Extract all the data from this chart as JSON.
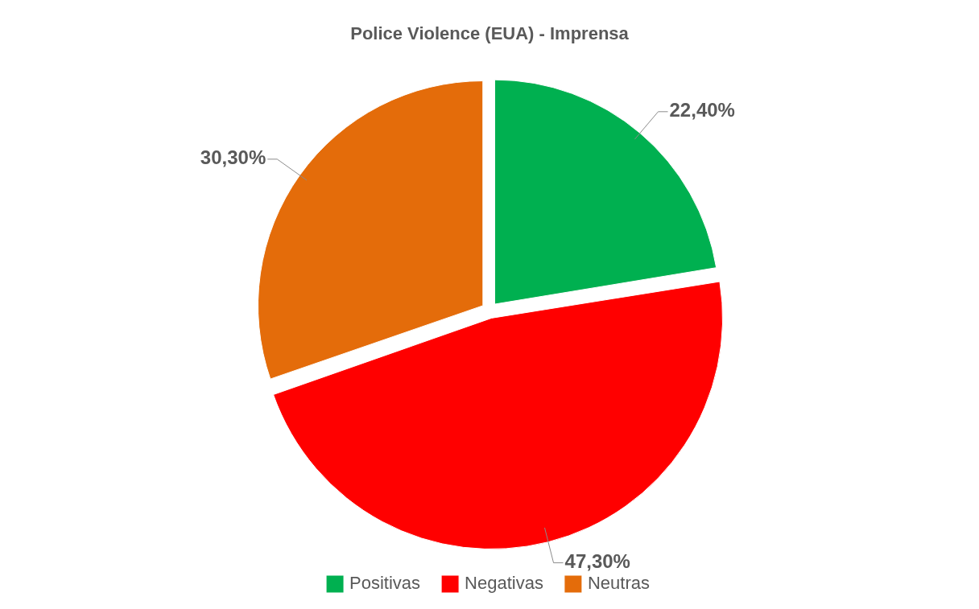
{
  "chart_data": {
    "type": "pie",
    "title": "Police Violence (EUA) - Imprensa",
    "categories": [
      "Positivas",
      "Negativas",
      "Neutras"
    ],
    "values": [
      22.4,
      47.3,
      30.3
    ],
    "colors": [
      "#00b050",
      "#ff0000",
      "#e46c0a"
    ],
    "value_labels": [
      "22,40%",
      "47,30%",
      "30,30%"
    ],
    "legend": "bottom"
  }
}
